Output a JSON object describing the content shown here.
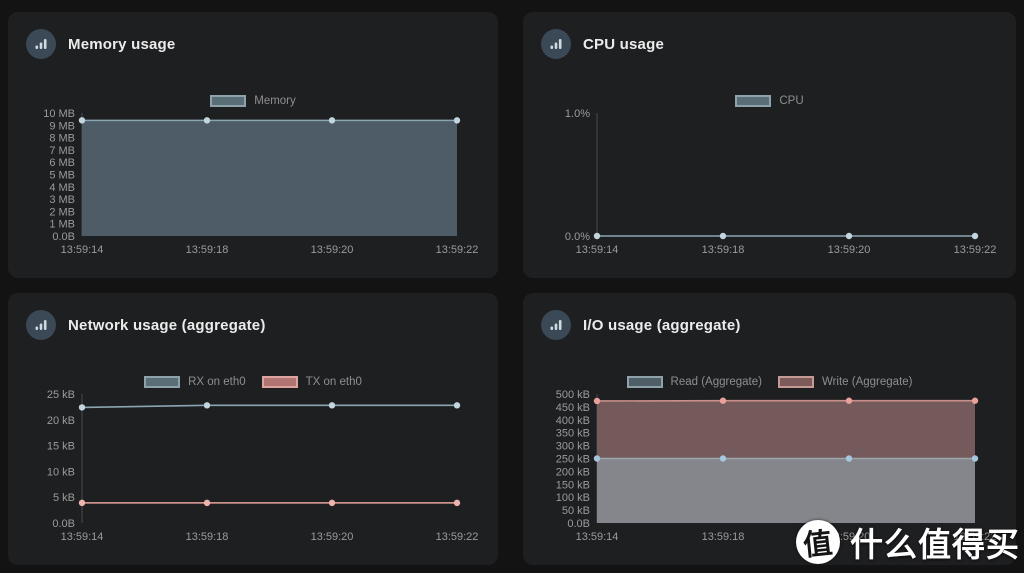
{
  "page": {
    "background": "#131313",
    "panel_background": "#1e1f21",
    "accent_blue": "#8aa5b2",
    "accent_salmon": "#e8a49d"
  },
  "watermark": {
    "badge_char": "值",
    "text": "什么值得买"
  },
  "panels": [
    {
      "title": "Memory usage"
    },
    {
      "title": "CPU usage"
    },
    {
      "title": "Network usage (aggregate)"
    },
    {
      "title": "I/O usage (aggregate)"
    }
  ],
  "chart_data": [
    {
      "id": "memory",
      "type": "area",
      "title": "Memory usage",
      "x": [
        "13:59:14",
        "13:59:18",
        "13:59:20",
        "13:59:22"
      ],
      "y_ticks": [
        "10 MB",
        "9 MB",
        "8 MB",
        "7 MB",
        "6 MB",
        "5 MB",
        "4 MB",
        "3 MB",
        "2 MB",
        "1 MB",
        "0.0B"
      ],
      "ylim": [
        0,
        10
      ],
      "xlabel": "",
      "ylabel": "",
      "grid": false,
      "legend_position": "top-center",
      "series": [
        {
          "name": "Memory",
          "values": [
            9.4,
            9.4,
            9.4,
            9.4
          ],
          "unit": "MB",
          "fill": true,
          "z": 1,
          "line_color": "#8aa5b2",
          "fill_color": "#4d5c66",
          "point_color": "#c2d5de",
          "legend_fill": "#5a6e78",
          "legend_border": "#8ea2ab"
        }
      ]
    },
    {
      "id": "cpu",
      "type": "line",
      "title": "CPU usage",
      "x": [
        "13:59:14",
        "13:59:18",
        "13:59:20",
        "13:59:22"
      ],
      "y_ticks": [
        "1.0%",
        "0.0%"
      ],
      "ylim": [
        0,
        1
      ],
      "xlabel": "",
      "ylabel": "",
      "grid": false,
      "legend_position": "top-center",
      "series": [
        {
          "name": "CPU",
          "values": [
            0,
            0,
            0,
            0
          ],
          "unit": "%",
          "fill": false,
          "z": 1,
          "line_color": "#8aa5b2",
          "point_color": "#c2d5de",
          "legend_fill": "#5a6e78",
          "legend_border": "#8ea2ab"
        }
      ]
    },
    {
      "id": "network",
      "type": "line",
      "title": "Network usage (aggregate)",
      "x": [
        "13:59:14",
        "13:59:18",
        "13:59:20",
        "13:59:22"
      ],
      "y_ticks": [
        "25 kB",
        "20 kB",
        "15 kB",
        "10 kB",
        "5 kB",
        "0.0B"
      ],
      "ylim": [
        0,
        25
      ],
      "xlabel": "",
      "ylabel": "",
      "grid": false,
      "legend_position": "top-center",
      "series": [
        {
          "name": "RX on eth0",
          "values": [
            22.4,
            22.8,
            22.8,
            22.8
          ],
          "unit": "kB",
          "fill": false,
          "z": 1,
          "line_color": "#8aa5b2",
          "point_color": "#c2d5de",
          "legend_fill": "#5a6e78",
          "legend_border": "#8ea2ab"
        },
        {
          "name": "TX on eth0",
          "values": [
            3.9,
            3.9,
            3.9,
            3.9
          ],
          "unit": "kB",
          "fill": false,
          "z": 2,
          "line_color": "#e8a49d",
          "point_color": "#eeb3ac",
          "legend_fill": "#b17473",
          "legend_border": "#dca49e"
        }
      ]
    },
    {
      "id": "io",
      "type": "area",
      "title": "I/O usage (aggregate)",
      "x": [
        "13:59:14",
        "13:59:18",
        "13:59:20",
        "13:59:22"
      ],
      "y_ticks": [
        "500 kB",
        "450 kB",
        "400 kB",
        "350 kB",
        "300 kB",
        "250 kB",
        "200 kB",
        "150 kB",
        "100 kB",
        "50 kB",
        "0.0B"
      ],
      "ylim": [
        0,
        500
      ],
      "xlabel": "",
      "ylabel": "",
      "grid": false,
      "legend_position": "top-center",
      "series": [
        {
          "name": "Read (Aggregate)",
          "values": [
            250,
            250,
            250,
            250
          ],
          "unit": "kB",
          "fill": true,
          "z": 2,
          "line_color": "#9aa7ad",
          "fill_color": "#85868b",
          "point_color": "#a5c6dc",
          "legend_fill": "#4f5f68",
          "legend_border": "#8ea2ab"
        },
        {
          "name": "Write (Aggregate)",
          "values": [
            473,
            474,
            474,
            474
          ],
          "unit": "kB",
          "fill": true,
          "z": 1,
          "line_color": "#c98f8a",
          "fill_color": "#755a5c",
          "point_color": "#e8a19b",
          "legend_fill": "#7d5b5b",
          "legend_border": "#c69a94"
        }
      ]
    }
  ]
}
